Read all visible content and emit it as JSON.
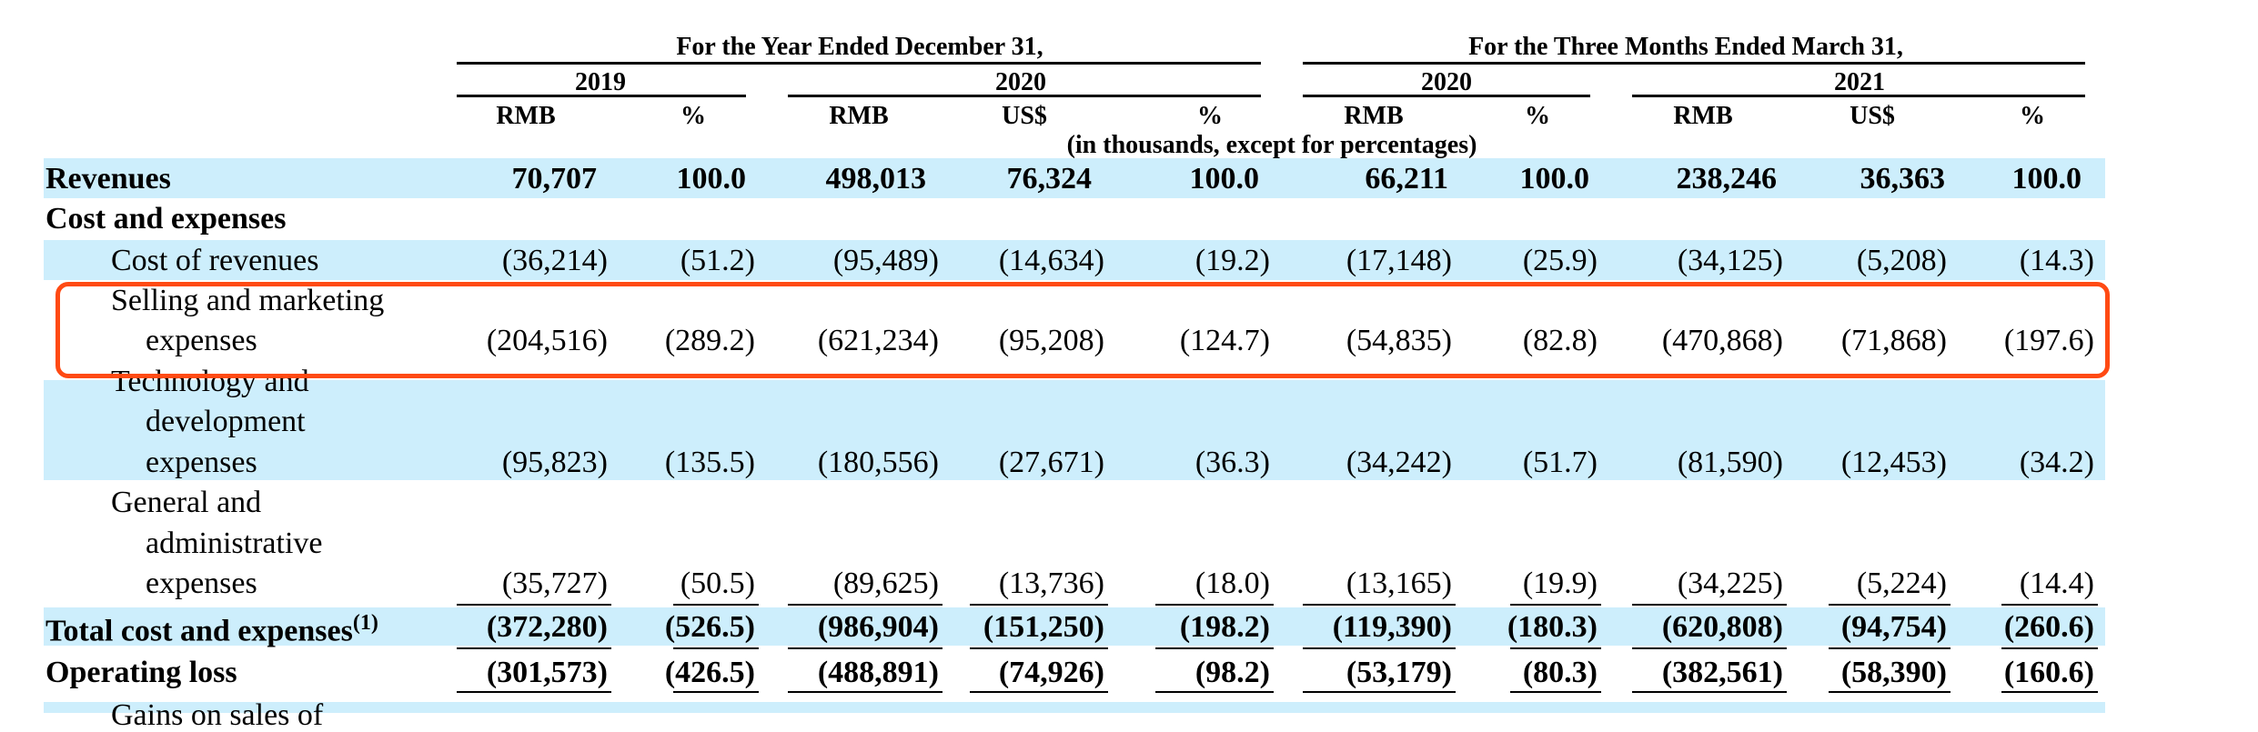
{
  "header": {
    "group_year": "For the Year Ended December 31,",
    "group_quarter": "For the Three Months Ended March 31,",
    "years": [
      "2019",
      "2020",
      "2020",
      "2021"
    ],
    "units": [
      "RMB",
      "%",
      "RMB",
      "US$",
      "%",
      "RMB",
      "%",
      "RMB",
      "US$",
      "%"
    ],
    "note": "(in thousands, except for percentages)"
  },
  "rows": {
    "revenues": {
      "label": "Revenues",
      "values": [
        "70,707",
        "100.0",
        "498,013",
        "76,324",
        "100.0",
        "66,211",
        "100.0",
        "238,246",
        "36,363",
        "100.0"
      ]
    },
    "cost_and_expenses": {
      "label": "Cost and expenses"
    },
    "cost_of_revenues": {
      "label": "Cost of revenues",
      "values": [
        "(36,214)",
        "(51.2)",
        "(95,489)",
        "(14,634)",
        "(19.2)",
        "(17,148)",
        "(25.9)",
        "(34,125)",
        "(5,208)",
        "(14.3)"
      ]
    },
    "selling": {
      "label1": "Selling and marketing",
      "label2": "expenses",
      "values": [
        "(204,516)",
        "(289.2)",
        "(621,234)",
        "(95,208)",
        "(124.7)",
        "(54,835)",
        "(82.8)",
        "(470,868)",
        "(71,868)",
        "(197.6)"
      ]
    },
    "technology": {
      "label1": "Technology and",
      "label2": "development",
      "label3": "expenses",
      "values": [
        "(95,823)",
        "(135.5)",
        "(180,556)",
        "(27,671)",
        "(36.3)",
        "(34,242)",
        "(51.7)",
        "(81,590)",
        "(12,453)",
        "(34.2)"
      ]
    },
    "general": {
      "label1": "General and",
      "label2": "administrative",
      "label3": "expenses",
      "values": [
        "(35,727)",
        "(50.5)",
        "(89,625)",
        "(13,736)",
        "(18.0)",
        "(13,165)",
        "(19.9)",
        "(34,225)",
        "(5,224)",
        "(14.4)"
      ]
    },
    "total": {
      "label": "Total cost and expenses",
      "footnote": "(1)",
      "values": [
        "(372,280)",
        "(526.5)",
        "(986,904)",
        "(151,250)",
        "(198.2)",
        "(119,390)",
        "(180.3)",
        "(620,808)",
        "(94,754)",
        "(260.6)"
      ]
    },
    "operating_loss": {
      "label": "Operating loss",
      "values": [
        "(301,573)",
        "(426.5)",
        "(488,891)",
        "(74,926)",
        "(98.2)",
        "(53,179)",
        "(80.3)",
        "(382,561)",
        "(58,390)",
        "(160.6)"
      ]
    },
    "partial_next": {
      "label": "Gains on sales of"
    }
  },
  "colors": {
    "shade": "#cdeefc",
    "highlight": "#ff4a13"
  }
}
